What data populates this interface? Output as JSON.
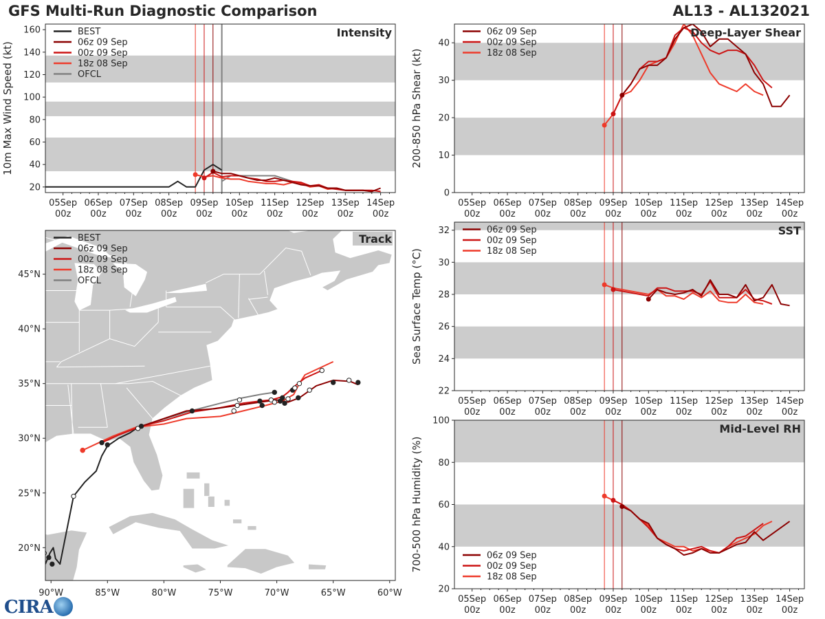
{
  "header": {
    "title": "GFS Multi-Run Diagnostic Comparison",
    "storm": "AL13 - AL132021"
  },
  "colors": {
    "best": "#222222",
    "run06z": "#8b0000",
    "run00z": "#cc1414",
    "run18z": "#ee3a2a",
    "ofcl": "#808080",
    "band": "#cccccc",
    "land": "#c8c8c8",
    "ocean": "#ffffff"
  },
  "time_ticks": [
    "05Sep\n00z",
    "06Sep\n00z",
    "07Sep\n00z",
    "08Sep\n00z",
    "09Sep\n00z",
    "10Sep\n00z",
    "11Sep\n00z",
    "12Sep\n00z",
    "13Sep\n00z",
    "14Sep\n00z"
  ],
  "init_times_hours": {
    "run18z": 90,
    "run00z": 96,
    "run06z": 102,
    "ofcl": 108
  },
  "chart_data": [
    {
      "id": "intensity",
      "type": "line",
      "title": "Intensity",
      "ylabel": "10m Max Wind Speed (kt)",
      "xlabel": "",
      "xlim_hours": [
        -12,
        226
      ],
      "ylim": [
        15,
        165
      ],
      "yticks": [
        20,
        40,
        60,
        80,
        100,
        120,
        140,
        160
      ],
      "bands": [
        [
          34,
          64
        ],
        [
          83,
          96
        ],
        [
          113,
          137
        ]
      ],
      "legend": [
        "BEST",
        "06z 09 Sep",
        "00z 09 Sep",
        "18z 08 Sep",
        "OFCL"
      ],
      "legend_placement": "top-left",
      "series": [
        {
          "name": "BEST",
          "color_key": "best",
          "x": [
            -12,
            72,
            78,
            84,
            90,
            96,
            102,
            108
          ],
          "y": [
            20,
            20,
            25,
            20,
            20,
            35,
            40,
            35
          ]
        },
        {
          "name": "OFCL",
          "color_key": "ofcl",
          "x": [
            108,
            114,
            120,
            132,
            144,
            156
          ],
          "y": [
            25,
            30,
            30,
            30,
            30,
            25
          ]
        },
        {
          "name": "18z 08 Sep",
          "color_key": "run18z",
          "x": [
            90,
            96,
            102,
            108,
            114,
            120,
            126,
            132,
            138,
            144,
            150,
            156,
            162,
            168,
            174,
            180,
            186,
            192,
            198,
            204,
            210
          ],
          "y": [
            31,
            29,
            30,
            28,
            27,
            27,
            25,
            24,
            23,
            23,
            22,
            24,
            23,
            20,
            21,
            18,
            19,
            17,
            17,
            17,
            16
          ]
        },
        {
          "name": "00z 09 Sep",
          "color_key": "run00z",
          "x": [
            96,
            102,
            108,
            114,
            120,
            126,
            132,
            138,
            144,
            150,
            156,
            162,
            168,
            174,
            180,
            186,
            192,
            198,
            204,
            210,
            216
          ],
          "y": [
            28,
            33,
            29,
            30,
            30,
            28,
            27,
            25,
            25,
            26,
            25,
            24,
            21,
            22,
            19,
            18,
            17,
            17,
            17,
            17,
            16
          ]
        },
        {
          "name": "06z 09 Sep",
          "color_key": "run06z",
          "x": [
            102,
            108,
            114,
            120,
            126,
            132,
            138,
            144,
            150,
            156,
            162,
            168,
            174,
            180,
            186,
            192,
            198,
            204,
            210,
            216
          ],
          "y": [
            34,
            32,
            32,
            30,
            28,
            26,
            26,
            28,
            26,
            24,
            22,
            21,
            21,
            19,
            19,
            17,
            17,
            17,
            16,
            19
          ]
        }
      ]
    },
    {
      "id": "shear",
      "type": "line",
      "title": "Deep-Layer Shear",
      "ylabel": "200-850 hPa Shear (kt)",
      "xlabel": "",
      "xlim_hours": [
        -12,
        226
      ],
      "ylim": [
        0,
        45
      ],
      "yticks": [
        0,
        10,
        20,
        30,
        40
      ],
      "bands": [
        [
          10,
          20
        ],
        [
          30,
          40
        ]
      ],
      "legend": [
        "06z 09 Sep",
        "00z 09 Sep",
        "18z 08 Sep"
      ],
      "legend_placement": "top-left",
      "series": [
        {
          "name": "18z 08 Sep",
          "color_key": "run18z",
          "x": [
            90,
            96,
            102,
            108,
            114,
            120,
            126,
            132,
            138,
            144,
            150,
            156,
            162,
            168,
            174,
            180,
            186,
            192,
            198
          ],
          "y": [
            18,
            21,
            26,
            27,
            30,
            34,
            35,
            36,
            40,
            45,
            42,
            37,
            32,
            29,
            28,
            27,
            29,
            27,
            26
          ]
        },
        {
          "name": "00z 09 Sep",
          "color_key": "run00z",
          "x": [
            96,
            102,
            108,
            114,
            120,
            126,
            132,
            138,
            144,
            150,
            156,
            162,
            168,
            174,
            180,
            186,
            192,
            198,
            204
          ],
          "y": [
            21,
            26,
            29,
            33,
            35,
            35,
            36,
            42,
            44,
            43,
            40,
            38,
            37,
            38,
            38,
            37,
            34,
            30,
            28
          ]
        },
        {
          "name": "06z 09 Sep",
          "color_key": "run06z",
          "x": [
            102,
            108,
            114,
            120,
            126,
            132,
            138,
            144,
            150,
            156,
            162,
            168,
            174,
            180,
            186,
            192,
            198,
            204,
            210,
            216
          ],
          "y": [
            26,
            29,
            33,
            34,
            34,
            36,
            41,
            44,
            45,
            43,
            39,
            41,
            41,
            39,
            37,
            32,
            29,
            23,
            23,
            26
          ]
        }
      ]
    },
    {
      "id": "sst",
      "type": "line",
      "title": "SST",
      "ylabel": "Sea Surface Temp (°C)",
      "xlabel": "",
      "xlim_hours": [
        -12,
        226
      ],
      "ylim": [
        22,
        32.5
      ],
      "yticks": [
        22,
        24,
        26,
        28,
        30,
        32
      ],
      "bands": [
        [
          24,
          26
        ],
        [
          28,
          30
        ],
        [
          32,
          32.5
        ]
      ],
      "legend": [
        "06z 09 Sep",
        "00z 09 Sep",
        "18z 08 Sep"
      ],
      "legend_placement": "top-left",
      "series": [
        {
          "name": "18z 08 Sep",
          "color_key": "run18z",
          "x": [
            90,
            96,
            120,
            126,
            132,
            138,
            144,
            150,
            156,
            162,
            168,
            174,
            180,
            186,
            192,
            198
          ],
          "y": [
            28.6,
            28.4,
            28.0,
            28.3,
            27.9,
            27.9,
            27.7,
            28.1,
            27.8,
            28.2,
            27.6,
            27.5,
            27.5,
            28.0,
            27.5,
            27.4
          ]
        },
        {
          "name": "00z 09 Sep",
          "color_key": "run00z",
          "x": [
            96,
            120,
            126,
            132,
            138,
            144,
            150,
            156,
            162,
            168,
            174,
            180,
            186,
            192,
            198,
            204
          ],
          "y": [
            28.3,
            27.9,
            28.4,
            28.4,
            28.2,
            28.2,
            28.2,
            28.0,
            28.8,
            27.8,
            27.8,
            27.8,
            28.3,
            27.7,
            27.6,
            27.4
          ]
        },
        {
          "name": "06z 09 Sep",
          "color_key": "run06z",
          "x": [
            120,
            126,
            132,
            138,
            144,
            150,
            156,
            162,
            168,
            174,
            180,
            186,
            192,
            198,
            204,
            210,
            216
          ],
          "y": [
            27.7,
            28.3,
            28.1,
            28.0,
            28.1,
            28.3,
            27.9,
            28.9,
            28.0,
            28.0,
            27.8,
            28.6,
            27.6,
            27.8,
            28.6,
            27.4,
            27.3
          ]
        }
      ]
    },
    {
      "id": "rh",
      "type": "line",
      "title": "Mid-Level RH",
      "ylabel": "700-500 hPa Humidity (%)",
      "xlabel": "",
      "xlim_hours": [
        -12,
        226
      ],
      "ylim": [
        20,
        100
      ],
      "yticks": [
        20,
        40,
        60,
        80,
        100
      ],
      "bands": [
        [
          40,
          60
        ],
        [
          80,
          100
        ]
      ],
      "legend": [
        "06z 09 Sep",
        "00z 09 Sep",
        "18z 08 Sep"
      ],
      "legend_placement": "bottom-left",
      "series": [
        {
          "name": "18z 08 Sep",
          "color_key": "run18z",
          "x": [
            90,
            96,
            102,
            108,
            114,
            120,
            126,
            132,
            138,
            144,
            150,
            156,
            162,
            168,
            174,
            180,
            186,
            192,
            198,
            204
          ],
          "y": [
            64,
            62,
            60,
            57,
            53,
            50,
            44,
            42,
            40,
            40,
            38,
            39,
            38,
            37,
            40,
            42,
            44,
            46,
            50,
            52
          ]
        },
        {
          "name": "00z 09 Sep",
          "color_key": "run00z",
          "x": [
            96,
            102,
            108,
            114,
            120,
            126,
            132,
            138,
            144,
            150,
            156,
            162,
            168,
            174,
            180,
            186,
            192,
            198
          ],
          "y": [
            62,
            60,
            57,
            53,
            49,
            44,
            41,
            39,
            38,
            39,
            40,
            38,
            37,
            40,
            44,
            45,
            48,
            51
          ]
        },
        {
          "name": "06z 09 Sep",
          "color_key": "run06z",
          "x": [
            102,
            108,
            114,
            120,
            126,
            132,
            138,
            144,
            150,
            156,
            162,
            168,
            174,
            180,
            186,
            192,
            198,
            204,
            210,
            216
          ],
          "y": [
            59,
            57,
            53,
            51,
            44,
            41,
            39,
            36,
            37,
            39,
            37,
            37,
            39,
            41,
            42,
            47,
            43,
            46,
            49,
            52
          ]
        }
      ]
    },
    {
      "id": "track",
      "type": "scatter",
      "title": "Track",
      "xlabel": "",
      "ylabel": "",
      "xlim": [
        -90.5,
        -59.5
      ],
      "ylim": [
        17,
        49
      ],
      "xticks": [
        -90,
        -85,
        -80,
        -75,
        -70,
        -65,
        -60
      ],
      "xtick_labels": [
        "90°W",
        "85°W",
        "80°W",
        "75°W",
        "70°W",
        "65°W",
        "60°W"
      ],
      "yticks": [
        20,
        25,
        30,
        35,
        40,
        45
      ],
      "ytick_labels": [
        "20°N",
        "25°N",
        "30°N",
        "35°N",
        "40°N",
        "45°N"
      ],
      "legend": [
        "BEST",
        "06z 09 Sep",
        "00z 09 Sep",
        "18z 08 Sep",
        "OFCL"
      ],
      "legend_placement": "top-left",
      "series": [
        {
          "name": "BEST",
          "color_key": "best",
          "lon": [
            -90.5,
            -90.1,
            -89.8,
            -89.6,
            -89.2,
            -88.0,
            -87.0,
            -86.0,
            -85.5,
            -85.0,
            -84.0,
            -83.0,
            -82.3
          ],
          "lat": [
            18.5,
            19.5,
            20.0,
            19.0,
            18.5,
            24.7,
            26.0,
            27.0,
            28.4,
            29.3,
            30.0,
            30.5,
            31.0
          ],
          "open": [
            true,
            false,
            false
          ]
        },
        {
          "name": "18z 08 Sep",
          "color_key": "run18z",
          "lon": [
            -87.2,
            -84.5,
            -82.5,
            -80.0,
            -78.0,
            -75.0,
            -73.0,
            -71.0,
            -69.5,
            -68.5,
            -68.0,
            -67.5,
            -65.0
          ],
          "lat": [
            28.9,
            30.2,
            31.0,
            31.3,
            31.8,
            32.0,
            32.5,
            33.0,
            33.4,
            34.0,
            35.0,
            35.8,
            37.0
          ]
        },
        {
          "name": "00z 09 Sep",
          "color_key": "run00z",
          "lon": [
            -85.5,
            -84.0,
            -82.0,
            -80.0,
            -77.5,
            -75.0,
            -73.0,
            -71.5,
            -70.5,
            -69.5,
            -69.0,
            -68.5,
            -67.5,
            -66.0
          ],
          "lat": [
            29.6,
            30.3,
            31.1,
            31.6,
            32.4,
            32.8,
            33.2,
            33.4,
            33.5,
            33.8,
            34.2,
            34.7,
            35.5,
            36.2
          ]
        },
        {
          "name": "06z 09 Sep",
          "color_key": "run06z",
          "lon": [
            -82.0,
            -80.0,
            -78.0,
            -75.5,
            -73.5,
            -71.5,
            -70.0,
            -69.0,
            -68.0,
            -66.5,
            -65.0,
            -63.5,
            -62.8
          ],
          "lat": [
            31.1,
            31.8,
            32.5,
            32.7,
            33.0,
            33.3,
            33.5,
            33.3,
            33.7,
            34.8,
            35.3,
            35.2,
            34.9
          ]
        },
        {
          "name": "OFCL",
          "color_key": "ofcl",
          "lon": [
            -82.0,
            -78.0,
            -75.0,
            -73.0,
            -71.5,
            -70.2
          ],
          "lat": [
            31.1,
            32.4,
            33.2,
            33.7,
            34.0,
            34.2
          ]
        }
      ]
    }
  ]
}
